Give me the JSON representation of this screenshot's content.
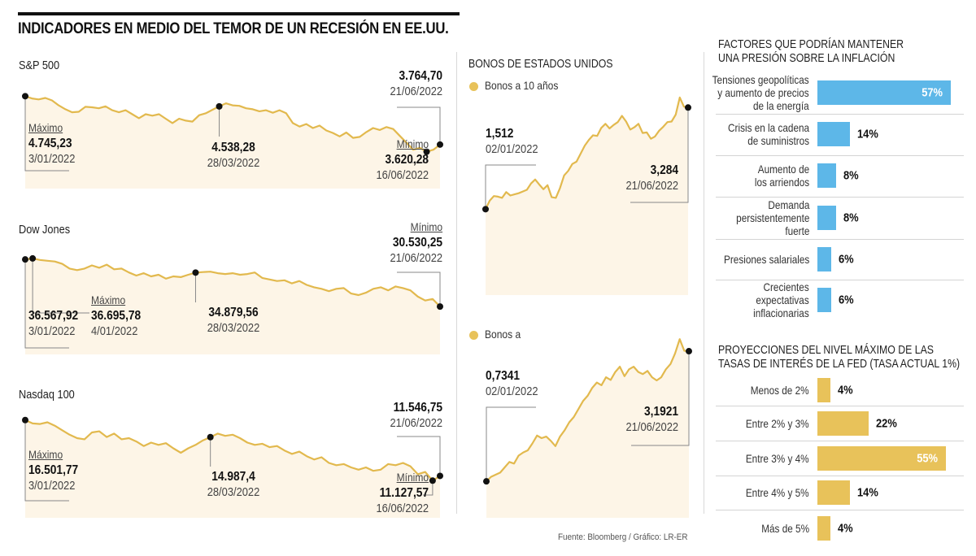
{
  "header": {
    "title": "INDICADORES EN MEDIO DEL TEMOR DE UN RECESIÓN EN EE.UU."
  },
  "colors": {
    "line_gold": "#e2b94e",
    "area_fill": "#fdf5e7",
    "bar_blue": "#5db7e8",
    "bar_gold": "#e8c25a",
    "marker": "#111111",
    "leader": "#888888"
  },
  "footer": {
    "source": "Fuente: Bloomberg / Gráfico: LR-ER"
  },
  "chart_data": [
    {
      "id": "sp500",
      "type": "area",
      "title": "S&P 500",
      "x_range": [
        "03/01/2022",
        "21/06/2022"
      ],
      "ylim": [
        3400,
        4800
      ],
      "values": [
        4745.23,
        4700,
        4680,
        4710,
        4660,
        4560,
        4480,
        4420,
        4430,
        4530,
        4520,
        4500,
        4540,
        4460,
        4420,
        4460,
        4380,
        4300,
        4380,
        4350,
        4380,
        4290,
        4200,
        4290,
        4250,
        4230,
        4360,
        4400,
        4470,
        4538.28,
        4600,
        4560,
        4550,
        4500,
        4480,
        4440,
        4460,
        4410,
        4460,
        4400,
        4200,
        4130,
        4180,
        4100,
        4150,
        4050,
        4000,
        3930,
        4010,
        3900,
        3920,
        4020,
        4100,
        4060,
        4120,
        4080,
        3940,
        3800,
        3660,
        3700,
        3620.28,
        3660,
        3764.7
      ],
      "annotations": [
        {
          "label": "Máximo",
          "value": "4.745,23",
          "date": "3/01/2022"
        },
        {
          "label": "",
          "value": "4.538,28",
          "date": "28/03/2022"
        },
        {
          "label": "Mínimo",
          "value": "3.620,28",
          "date": "16/06/2022"
        },
        {
          "label": "",
          "value": "3.764,70",
          "date": "21/06/2022"
        }
      ]
    },
    {
      "id": "dowjones",
      "type": "area",
      "title": "Dow Jones",
      "x_range": [
        "03/01/2022",
        "21/06/2022"
      ],
      "ylim": [
        29500,
        37000
      ],
      "values": [
        36567.92,
        36695.78,
        36500,
        36400,
        36300,
        36000,
        35400,
        35200,
        35400,
        35800,
        35500,
        35900,
        35300,
        35400,
        34900,
        34500,
        34800,
        34400,
        34600,
        34100,
        34400,
        34300,
        34600,
        34879.56,
        34950,
        35000,
        34800,
        34700,
        34800,
        34600,
        34700,
        34900,
        34200,
        34000,
        33800,
        33900,
        33500,
        33800,
        33300,
        33000,
        32800,
        32500,
        32800,
        32900,
        32200,
        32000,
        32300,
        32800,
        33000,
        32600,
        33100,
        32900,
        32600,
        31800,
        31300,
        31500,
        30530.25
      ],
      "annotations": [
        {
          "label": "",
          "value": "36.567,92",
          "date": "3/01/2022"
        },
        {
          "label": "Máximo",
          "value": "36.695,78",
          "date": "4/01/2022"
        },
        {
          "label": "",
          "value": "34.879,56",
          "date": "28/03/2022"
        },
        {
          "label": "Mínimo",
          "value": "30.530,25",
          "date": "21/06/2022"
        }
      ]
    },
    {
      "id": "nasdaq100",
      "type": "area",
      "title": "Nasdaq 100",
      "x_range": [
        "03/01/2022",
        "21/06/2022"
      ],
      "ylim": [
        10500,
        16700
      ],
      "values": [
        16501.77,
        16200,
        16150,
        16300,
        16000,
        15600,
        15200,
        14900,
        14800,
        15400,
        15500,
        15000,
        15300,
        14800,
        14900,
        14600,
        14200,
        14500,
        14300,
        14450,
        14000,
        13600,
        14000,
        14300,
        14700,
        14987.4,
        15300,
        15100,
        15200,
        14900,
        14500,
        14300,
        14400,
        14100,
        14200,
        13800,
        13500,
        13700,
        13300,
        13000,
        13200,
        12700,
        12500,
        12600,
        12300,
        12100,
        12300,
        12000,
        12100,
        12600,
        12500,
        12700,
        12400,
        11700,
        11900,
        11127.57,
        11546.75
      ],
      "annotations": [
        {
          "label": "Máximo",
          "value": "16.501,77",
          "date": "3/01/2022"
        },
        {
          "label": "",
          "value": "14.987,4",
          "date": "28/03/2022"
        },
        {
          "label": "Mínimo",
          "value": "11.127,57",
          "date": "16/06/2022"
        },
        {
          "label": "",
          "value": "11.546,75",
          "date": "21/06/2022"
        }
      ]
    },
    {
      "id": "bonos10",
      "type": "area",
      "title": "BONOS DE ESTADOS UNIDOS",
      "legend": "Bonos a 10 años",
      "x_range": [
        "02/01/2022",
        "21/06/2022"
      ],
      "ylim": [
        0,
        3.6
      ],
      "values": [
        1.512,
        1.66,
        1.74,
        1.73,
        1.71,
        1.81,
        1.75,
        1.77,
        1.79,
        1.82,
        1.85,
        1.96,
        2.03,
        1.94,
        1.86,
        1.93,
        1.72,
        1.71,
        1.88,
        2.1,
        2.18,
        2.3,
        2.34,
        2.48,
        2.62,
        2.72,
        2.8,
        2.79,
        2.93,
        3.0,
        2.92,
        2.98,
        3.03,
        3.14,
        3.04,
        2.9,
        2.94,
        3.0,
        2.84,
        2.85,
        2.74,
        2.78,
        2.88,
        2.95,
        3.03,
        3.04,
        3.16,
        3.46,
        3.3,
        3.284
      ],
      "annotations": [
        {
          "label": "",
          "value": "1,512",
          "date": "02/01/2022"
        },
        {
          "label": "",
          "value": "3,284",
          "date": "21/06/2022"
        }
      ]
    },
    {
      "id": "bonosa",
      "type": "area",
      "title": "",
      "legend": "Bonos a",
      "x_range": [
        "02/01/2022",
        "21/06/2022"
      ],
      "ylim": [
        0,
        3.5
      ],
      "values": [
        0.7341,
        0.82,
        0.86,
        0.9,
        1.0,
        1.1,
        1.07,
        1.22,
        1.28,
        1.32,
        1.45,
        1.6,
        1.55,
        1.58,
        1.5,
        1.4,
        1.58,
        1.7,
        1.85,
        1.95,
        2.1,
        2.25,
        2.35,
        2.5,
        2.6,
        2.55,
        2.7,
        2.65,
        2.8,
        2.9,
        2.72,
        2.85,
        2.9,
        2.8,
        2.76,
        2.82,
        2.7,
        2.64,
        2.7,
        2.85,
        2.95,
        3.15,
        3.42,
        3.2,
        3.1921
      ],
      "annotations": [
        {
          "label": "",
          "value": "0,7341",
          "date": "02/01/2022"
        },
        {
          "label": "",
          "value": "3,1921",
          "date": "21/06/2022"
        }
      ]
    },
    {
      "id": "factores",
      "type": "bar",
      "orientation": "horizontal",
      "title": "FACTORES QUE PODRÍAN MANTENER UNA PRESIÓN SOBRE LA INFLACIÓN",
      "categories": [
        "Tensiones geopolíticas y aumento de precios de la energía",
        "Crisis en la cadena de suministros",
        "Aumento de los arriendos",
        "Demanda persistentemente fuerte",
        "Presiones salariales",
        "Crecientes expectativas inflacionarias"
      ],
      "values": [
        57,
        14,
        8,
        8,
        6,
        6
      ],
      "value_labels": [
        "57%",
        "14%",
        "8%",
        "8%",
        "6%",
        "6%"
      ],
      "xlim": [
        0,
        57
      ]
    },
    {
      "id": "proyecciones",
      "type": "bar",
      "orientation": "horizontal",
      "title": "PROYECCIONES DEL NIVEL MÁXIMO DE LAS TASAS DE INTERÉS DE LA FED (TASA ACTUAL 1%)",
      "categories": [
        "Menos de 2%",
        "Entre 2% y 3%",
        "Entre 3% y 4%",
        "Entre 4% y 5%",
        "Más de 5%"
      ],
      "values": [
        4,
        22,
        55,
        14,
        4
      ],
      "value_labels": [
        "4%",
        "22%",
        "55%",
        "14%",
        "4%"
      ],
      "xlim": [
        0,
        57
      ]
    }
  ],
  "panels": {
    "sp500": {
      "title": "S&P 500"
    },
    "dowjones": {
      "title": "Dow Jones"
    },
    "nasdaq": {
      "title": "Nasdaq 100"
    },
    "bonos": {
      "title": "BONOS DE ESTADOS UNIDOS",
      "legend1": "Bonos a 10 años",
      "legend2": "Bonos a"
    },
    "factores": {
      "title_line1": "FACTORES QUE PODRÍAN MANTENER",
      "title_line2": "UNA PRESIÓN SOBRE LA INFLACIÓN",
      "rows": [
        {
          "lines": [
            "Tensiones geopolíticas",
            "y aumento de precios",
            "de la energía"
          ],
          "value": 57,
          "label": "57%"
        },
        {
          "lines": [
            "Crisis en la cadena",
            "de suministros"
          ],
          "value": 14,
          "label": "14%"
        },
        {
          "lines": [
            "Aumento de",
            "los arriendos"
          ],
          "value": 8,
          "label": "8%"
        },
        {
          "lines": [
            "Demanda",
            "persistentemente",
            "fuerte"
          ],
          "value": 8,
          "label": "8%"
        },
        {
          "lines": [
            "Presiones salariales"
          ],
          "value": 6,
          "label": "6%"
        },
        {
          "lines": [
            "Crecientes",
            "expectativas",
            "inflacionarias"
          ],
          "value": 6,
          "label": "6%"
        }
      ]
    },
    "proyecciones": {
      "title_line1": "PROYECCIONES DEL NIVEL MÁXIMO DE LAS",
      "title_line2": "TASAS DE INTERÉS DE LA FED (TASA ACTUAL 1%)",
      "rows": [
        {
          "lines": [
            "Menos de 2%"
          ],
          "value": 4,
          "label": "4%"
        },
        {
          "lines": [
            "Entre 2% y 3%"
          ],
          "value": 22,
          "label": "22%"
        },
        {
          "lines": [
            "Entre 3% y 4%"
          ],
          "value": 55,
          "label": "55%"
        },
        {
          "lines": [
            "Entre 4% y 5%"
          ],
          "value": 14,
          "label": "14%"
        },
        {
          "lines": [
            "Más de 5%"
          ],
          "value": 4,
          "label": "4%"
        }
      ]
    }
  }
}
